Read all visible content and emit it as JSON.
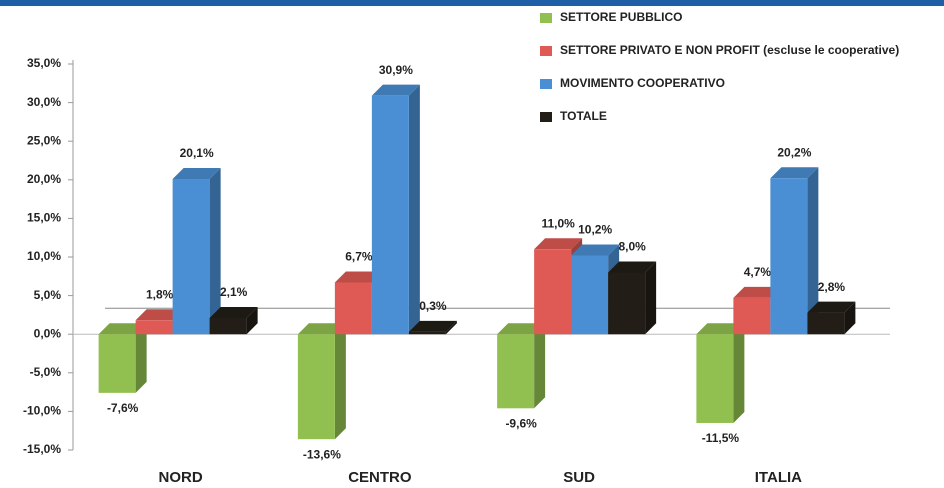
{
  "chart_data": {
    "type": "bar",
    "categories": [
      "NORD",
      "CENTRO",
      "SUD",
      "ITALIA"
    ],
    "series": [
      {
        "name": "SETTORE PUBBLICO",
        "color": "#92c050",
        "values": [
          -7.6,
          -13.6,
          -9.6,
          -11.5
        ],
        "value_labels": [
          "-7,6%",
          "-13,6%",
          "-9,6%",
          "-11,5%"
        ]
      },
      {
        "name": "SETTORE PRIVATO E NON PROFIT (escluse le cooperative)",
        "color": "#e05a55",
        "values": [
          1.8,
          6.7,
          11.0,
          4.7
        ],
        "value_labels": [
          "1,8%",
          "6,7%",
          "11,0%",
          "4,7%"
        ]
      },
      {
        "name": "MOVIMENTO COOPERATIVO",
        "color": "#4a8fd4",
        "values": [
          20.1,
          30.9,
          10.2,
          20.2
        ],
        "value_labels": [
          "20,1%",
          "30,9%",
          "10,2%",
          "20,2%"
        ]
      },
      {
        "name": "TOTALE",
        "color": "#221d16",
        "values": [
          2.1,
          0.3,
          8.0,
          2.8
        ],
        "value_labels": [
          "2,1%",
          "0,3%",
          "8,0%",
          "2,8%"
        ]
      }
    ],
    "ylim": [
      -15,
      35
    ],
    "yticks": [
      {
        "value": -15,
        "label": "-15,0%"
      },
      {
        "value": -10,
        "label": "-10,0%"
      },
      {
        "value": -5,
        "label": "-5,0%"
      },
      {
        "value": 0,
        "label": "0,0%"
      },
      {
        "value": 5,
        "label": "5,0%"
      },
      {
        "value": 10,
        "label": "10,0%"
      },
      {
        "value": 15,
        "label": "15,0%"
      },
      {
        "value": 20,
        "label": "20,0%"
      },
      {
        "value": 25,
        "label": "25,0%"
      },
      {
        "value": 30,
        "label": "30,0%"
      },
      {
        "value": 35,
        "label": "35,0%"
      }
    ],
    "grid": false,
    "legend": "top-right"
  }
}
